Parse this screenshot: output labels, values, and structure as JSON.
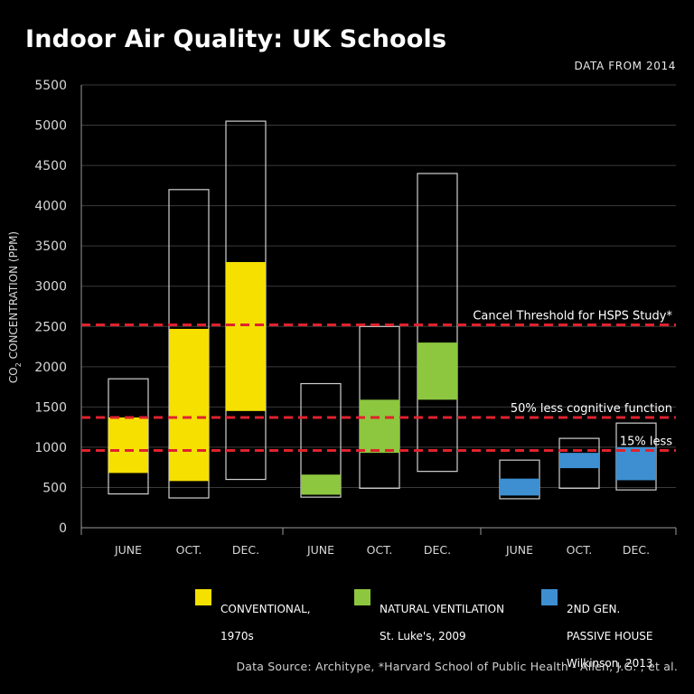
{
  "title": "Indoor Air Quality: UK Schools",
  "subtitle": "DATA FROM 2014",
  "source": "Data Source: Architype, *Harvard School of Public Health - Allen, J.G. , et al.",
  "chart_data": {
    "type": "bar",
    "ylabel": "CO2 CONCENTRATION (PPM)",
    "ylabel_main": "CO",
    "ylabel_sub": "2",
    "ylabel_rest": " CONCENTRATION (PPM)",
    "ylim": [
      0,
      5500
    ],
    "yticks": [
      0,
      500,
      1000,
      1500,
      2000,
      2500,
      3000,
      3500,
      4000,
      4500,
      5000,
      5500
    ],
    "grid": true,
    "categories": [
      "JUNE",
      "OCT.",
      "DEC.",
      "JUNE",
      "OCT.",
      "DEC.",
      "JUNE",
      "OCT.",
      "DEC."
    ],
    "series": [
      {
        "name": "CONVENTIONAL, 1970s",
        "legend_line1": "CONVENTIONAL,",
        "legend_line2": "1970s",
        "color": "#f5e000",
        "bars": [
          {
            "month": "JUNE",
            "min": 420,
            "max": 1850,
            "low": 680,
            "high": 1370
          },
          {
            "month": "OCT.",
            "min": 370,
            "max": 4200,
            "low": 580,
            "high": 2470
          },
          {
            "month": "DEC.",
            "min": 600,
            "max": 5050,
            "low": 1450,
            "high": 3300
          }
        ]
      },
      {
        "name": "NATURAL VENTILATION St. Luke's, 2009",
        "legend_line1": "NATURAL VENTILATION",
        "legend_line2": "St. Luke's, 2009",
        "color": "#8dc63f",
        "bars": [
          {
            "month": "JUNE",
            "min": 380,
            "max": 1790,
            "low": 410,
            "high": 660
          },
          {
            "month": "OCT.",
            "min": 490,
            "max": 2500,
            "low": 930,
            "high": 1590
          },
          {
            "month": "DEC.",
            "min": 700,
            "max": 4400,
            "low": 1590,
            "high": 2300
          }
        ]
      },
      {
        "name": "2ND GEN. PASSIVE HOUSE Wilkinson, 2013",
        "legend_line1": "2ND GEN.",
        "legend_line2": "PASSIVE HOUSE",
        "legend_line3": "Wilkinson, 2013",
        "color": "#3d8fd1",
        "bars": [
          {
            "month": "JUNE",
            "min": 360,
            "max": 840,
            "low": 400,
            "high": 610
          },
          {
            "month": "OCT.",
            "min": 490,
            "max": 1110,
            "low": 740,
            "high": 930
          },
          {
            "month": "DEC.",
            "min": 470,
            "max": 1300,
            "low": 590,
            "high": 1000
          }
        ]
      }
    ],
    "thresholds": [
      {
        "label": "Cancel Threshold for HSPS Study*",
        "value": 2520,
        "color": "#e0222e"
      },
      {
        "label": "50% less cognitive function",
        "value": 1370,
        "color": "#e0222e"
      },
      {
        "label": "15% less",
        "value": 960,
        "color": "#e0222e"
      }
    ]
  }
}
